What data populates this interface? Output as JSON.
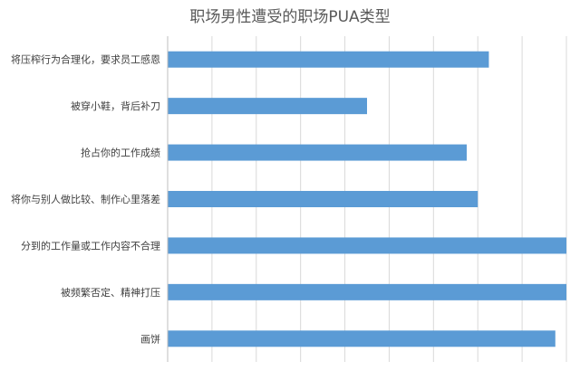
{
  "chart_data": {
    "type": "bar",
    "orientation": "horizontal",
    "title": "职场男性遭受的职场PUA类型",
    "categories": [
      "将压榨行为合理化，要求员工感恩",
      "被穿小鞋，背后补刀",
      "抢占你的工作成绩",
      "将你与别人做比较、制作心里落差",
      "分到的工作量或工作内容不合理",
      "被频繁否定、精神打压",
      "画饼"
    ],
    "values": [
      0.29,
      0.18,
      0.27,
      0.28,
      0.36,
      0.36,
      0.35
    ],
    "xlim": [
      0,
      0.36
    ],
    "grid": true,
    "bar_color": "#5b9bd5",
    "grid_color": "#d9d9d9"
  }
}
